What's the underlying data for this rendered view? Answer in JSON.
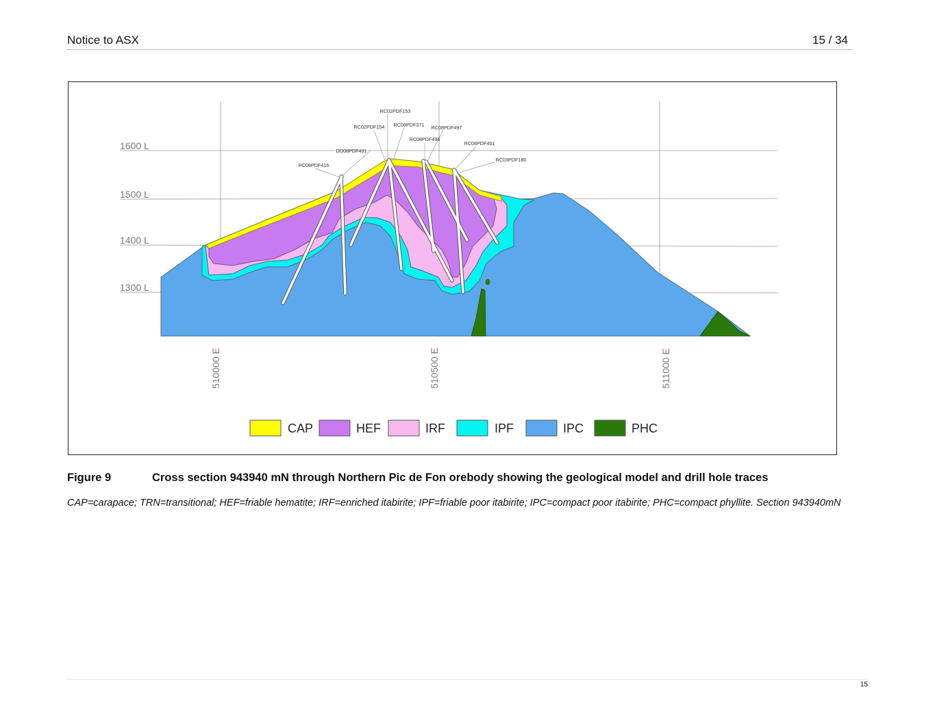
{
  "header": {
    "title": "Notice to ASX",
    "page": "15 / 34"
  },
  "figure": {
    "levels": [
      "1600 L",
      "1500 L",
      "1400 L",
      "1300 L"
    ],
    "eastings": [
      "510000 E",
      "510500 E",
      "511000 E"
    ],
    "drill_holes": [
      "RC02PDF153",
      "RC02PDF154",
      "RC08PDF371",
      "RC08PDF497",
      "RC08PDF496",
      "RC08PDF461",
      "DD08PDF431",
      "RC03PDF180",
      "RC08PDF416"
    ],
    "legend": [
      {
        "label": "CAP",
        "color": "#FFFF00"
      },
      {
        "label": "HEF",
        "color": "#C87AF0"
      },
      {
        "label": "IRF",
        "color": "#F8B8F0"
      },
      {
        "label": "IPF",
        "color": "#00F4F0"
      },
      {
        "label": "IPC",
        "color": "#5CA8EC"
      },
      {
        "label": "PHC",
        "color": "#2A7A0A"
      }
    ]
  },
  "caption": {
    "number": "Figure 9",
    "text": "Cross section 943940 mN through Northern Pic de Fon orebody showing the geological model and drill hole traces"
  },
  "note": "CAP=carapace; TRN=transitional; HEF=friable hematite; IRF=enriched itabirite; IPF=friable poor itabirite; IPC=compact poor itabirite; PHC=compact phyllite. Section 943940mN",
  "footer": {
    "page_number": "15"
  }
}
